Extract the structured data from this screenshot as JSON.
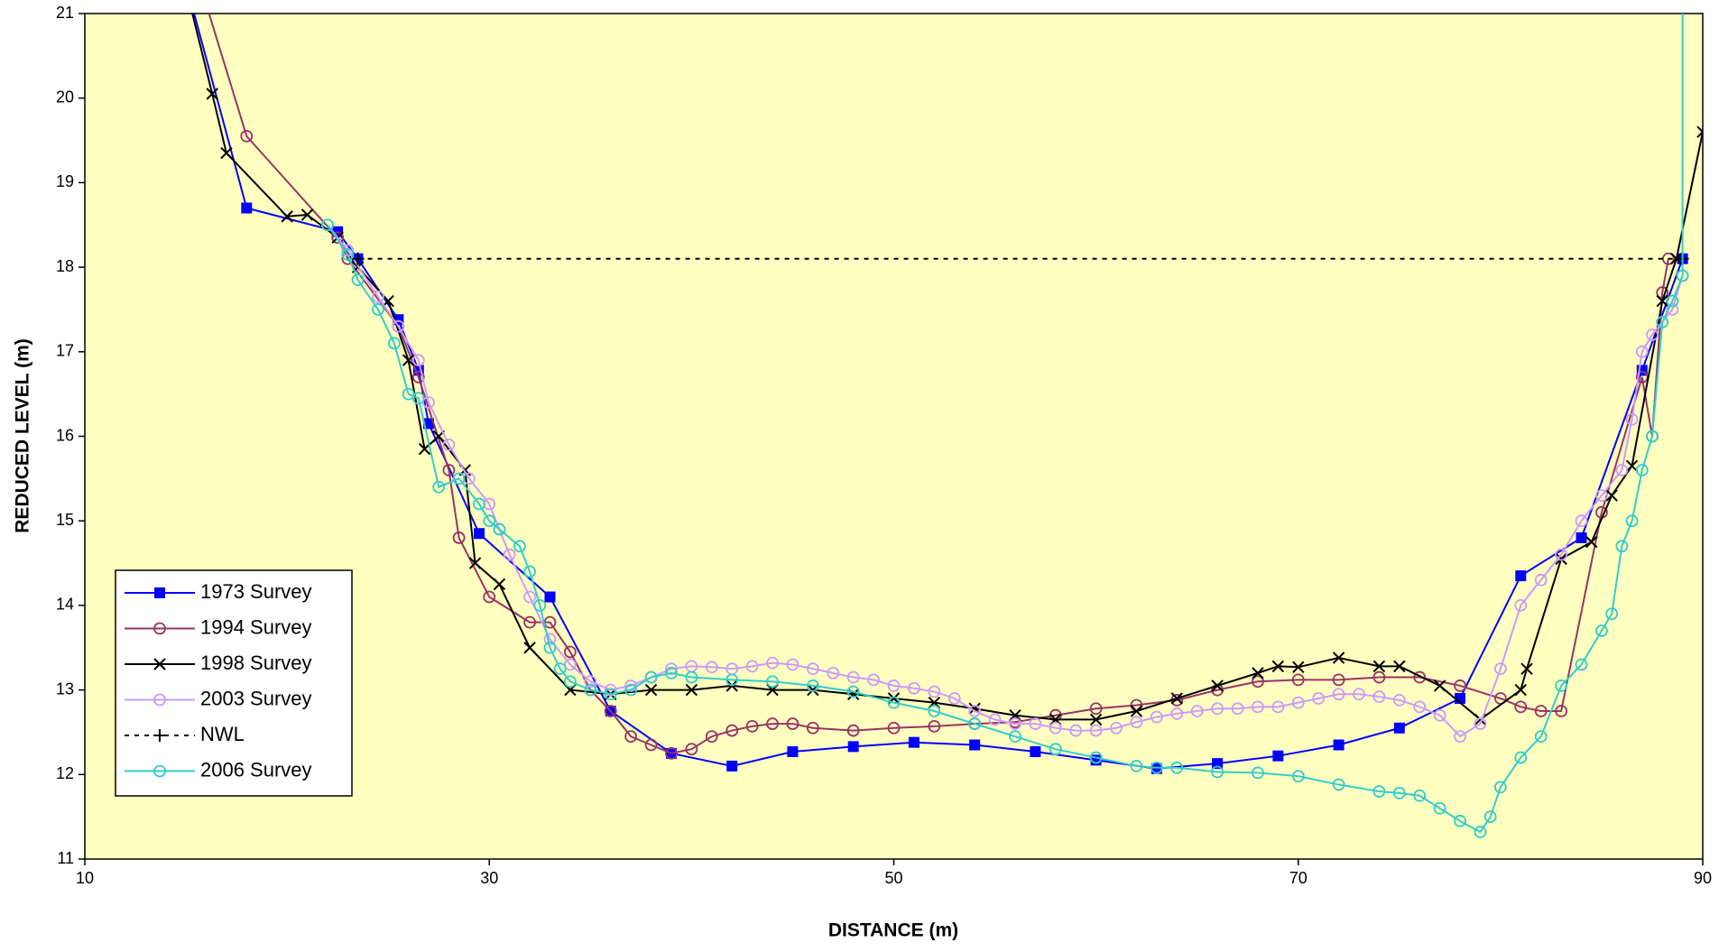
{
  "chart_data": {
    "type": "line",
    "x_label": "DISTANCE (m)",
    "y_label": "REDUCED LEVEL (m)",
    "xlim": [
      10,
      90
    ],
    "xticks": [
      10,
      30,
      50,
      70,
      90
    ],
    "ylim": [
      11,
      21
    ],
    "yticks": [
      11,
      12,
      13,
      14,
      15,
      16,
      17,
      18,
      19,
      20,
      21
    ],
    "background": "#ffffc0",
    "legend": "lower left",
    "series": [
      {
        "name": "1973 Survey",
        "color": "#0000ff",
        "marker": "square",
        "dash": false,
        "x": [
          14.5,
          18,
          22.5,
          23.5,
          25.5,
          26.5,
          27,
          29.5,
          33,
          36,
          39,
          42,
          45,
          48,
          51,
          54,
          57,
          60,
          63,
          66,
          69,
          72,
          75,
          78,
          81,
          84,
          87,
          89
        ],
        "values": [
          21.8,
          18.7,
          18.42,
          18.1,
          17.38,
          16.78,
          16.15,
          14.85,
          14.1,
          12.75,
          12.25,
          12.1,
          12.27,
          12.33,
          12.38,
          12.35,
          12.27,
          12.17,
          12.07,
          12.13,
          12.22,
          12.35,
          12.55,
          12.9,
          14.35,
          14.8,
          16.78,
          18.1
        ]
      },
      {
        "name": "1994 Survey",
        "color": "#993366",
        "marker": "circle",
        "dash": false,
        "x": [
          15.5,
          18,
          22.5,
          23,
          25.5,
          26.5,
          28,
          28.5,
          30,
          32,
          33,
          34,
          35,
          36,
          37,
          38,
          39,
          40,
          41,
          42,
          43,
          44,
          45,
          46,
          48,
          50,
          52,
          54,
          56,
          58,
          60,
          62,
          64,
          66,
          68,
          70,
          72,
          74,
          76,
          78,
          80,
          81,
          82,
          83,
          85,
          87,
          87.5,
          88,
          88.3
        ],
        "values": [
          21.5,
          19.55,
          18.35,
          18.1,
          17.3,
          16.7,
          15.6,
          14.8,
          14.1,
          13.8,
          13.8,
          13.45,
          13.0,
          12.75,
          12.45,
          12.35,
          12.25,
          12.3,
          12.45,
          12.52,
          12.57,
          12.6,
          12.6,
          12.55,
          12.52,
          12.55,
          12.57,
          12.6,
          12.62,
          12.7,
          12.78,
          12.82,
          12.88,
          13.0,
          13.1,
          13.12,
          13.12,
          13.15,
          13.15,
          13.05,
          12.9,
          12.8,
          12.75,
          12.75,
          15.1,
          16.7,
          16.0,
          17.7,
          18.1
        ]
      },
      {
        "name": "1998 Survey",
        "color": "#000000",
        "marker": "x",
        "dash": false,
        "x": [
          14.8,
          16.3,
          17,
          20,
          21,
          22.5,
          23.5,
          25,
          26,
          26.8,
          27.5,
          28.8,
          29.3,
          30.5,
          32,
          34,
          36,
          38,
          40,
          42,
          44,
          46,
          48,
          50,
          52,
          54,
          56,
          58,
          60,
          62,
          64,
          66,
          68,
          69,
          70,
          72,
          74,
          75,
          77,
          79,
          81,
          81.3,
          83,
          84.5,
          85.5,
          86.5,
          88,
          88.7,
          90
        ],
        "values": [
          21.5,
          20.05,
          19.35,
          18.6,
          18.62,
          18.35,
          18.0,
          17.6,
          16.9,
          15.85,
          16.0,
          15.6,
          14.5,
          14.25,
          13.5,
          13.0,
          12.95,
          13.0,
          13.0,
          13.05,
          13.0,
          13.0,
          12.95,
          12.9,
          12.85,
          12.78,
          12.7,
          12.65,
          12.65,
          12.75,
          12.9,
          13.05,
          13.2,
          13.28,
          13.27,
          13.38,
          13.28,
          13.28,
          13.05,
          12.65,
          13.0,
          13.25,
          14.55,
          14.75,
          15.3,
          15.65,
          17.6,
          18.1,
          19.6
        ]
      },
      {
        "name": "2003 Survey",
        "color": "#cc99ff",
        "marker": "circle",
        "dash": false,
        "x": [
          22,
          23,
          24.5,
          25.5,
          26.5,
          27,
          28,
          29,
          30,
          30.5,
          31,
          32,
          33,
          34,
          35,
          36,
          37,
          38,
          39,
          40,
          41,
          42,
          43,
          44,
          45,
          46,
          47,
          48,
          49,
          50,
          51,
          52,
          53,
          54,
          55,
          56,
          57,
          58,
          59,
          60,
          61,
          62,
          63,
          64,
          65,
          66,
          67,
          68,
          69,
          70,
          71,
          72,
          73,
          74,
          75,
          76,
          77,
          78,
          79,
          80,
          81,
          82,
          83,
          84,
          85,
          86,
          86.5,
          87,
          87.5,
          88,
          88.5,
          89
        ],
        "values": [
          18.5,
          18.2,
          17.65,
          17.3,
          16.9,
          16.4,
          15.9,
          15.5,
          15.2,
          14.9,
          14.6,
          14.1,
          13.6,
          13.3,
          13.1,
          13.0,
          13.05,
          13.15,
          13.25,
          13.28,
          13.27,
          13.25,
          13.28,
          13.32,
          13.3,
          13.25,
          13.2,
          13.15,
          13.12,
          13.05,
          13.02,
          12.98,
          12.9,
          12.75,
          12.65,
          12.6,
          12.6,
          12.55,
          12.52,
          12.52,
          12.55,
          12.62,
          12.68,
          12.72,
          12.75,
          12.78,
          12.78,
          12.8,
          12.8,
          12.85,
          12.9,
          12.95,
          12.95,
          12.92,
          12.88,
          12.8,
          12.7,
          12.45,
          12.6,
          13.25,
          14.0,
          14.3,
          14.6,
          15.0,
          15.3,
          15.6,
          16.2,
          17.0,
          17.2,
          17.35,
          17.5,
          17.9
        ]
      },
      {
        "name": "NWL",
        "color": "#000000",
        "marker": "plus",
        "dash": true,
        "x": [
          23.5,
          89
        ],
        "values": [
          18.1,
          18.1
        ]
      },
      {
        "name": "2006 Survey",
        "color": "#33cccc",
        "marker": "circle",
        "dash": false,
        "x": [
          22,
          23,
          23.5,
          24.5,
          25.3,
          26,
          26.5,
          27.5,
          28.5,
          29.5,
          30,
          30.5,
          31.5,
          32,
          32.5,
          33,
          33.5,
          34,
          35,
          36,
          37,
          38,
          39,
          40,
          42,
          44,
          46,
          48,
          50,
          52,
          54,
          56,
          58,
          60,
          62,
          63,
          64,
          66,
          68,
          70,
          72,
          74,
          75,
          76,
          77,
          78,
          79,
          79.5,
          80,
          81,
          82,
          83,
          84,
          85,
          85.5,
          86,
          86.5,
          87,
          87.5,
          88,
          88.5,
          89,
          89
        ],
        "values": [
          18.5,
          18.15,
          17.85,
          17.5,
          17.1,
          16.5,
          16.45,
          15.4,
          15.5,
          15.2,
          15.0,
          14.9,
          14.7,
          14.4,
          14.0,
          13.5,
          13.25,
          13.1,
          13.0,
          12.95,
          13.0,
          13.15,
          13.2,
          13.15,
          13.12,
          13.1,
          13.05,
          12.98,
          12.85,
          12.75,
          12.6,
          12.45,
          12.3,
          12.2,
          12.1,
          12.08,
          12.08,
          12.03,
          12.02,
          11.98,
          11.88,
          11.8,
          11.78,
          11.75,
          11.6,
          11.45,
          11.32,
          11.5,
          11.85,
          12.2,
          12.45,
          13.05,
          13.3,
          13.7,
          13.9,
          14.7,
          15.0,
          15.6,
          16.0,
          17.35,
          17.6,
          17.9,
          21.5
        ]
      }
    ]
  }
}
